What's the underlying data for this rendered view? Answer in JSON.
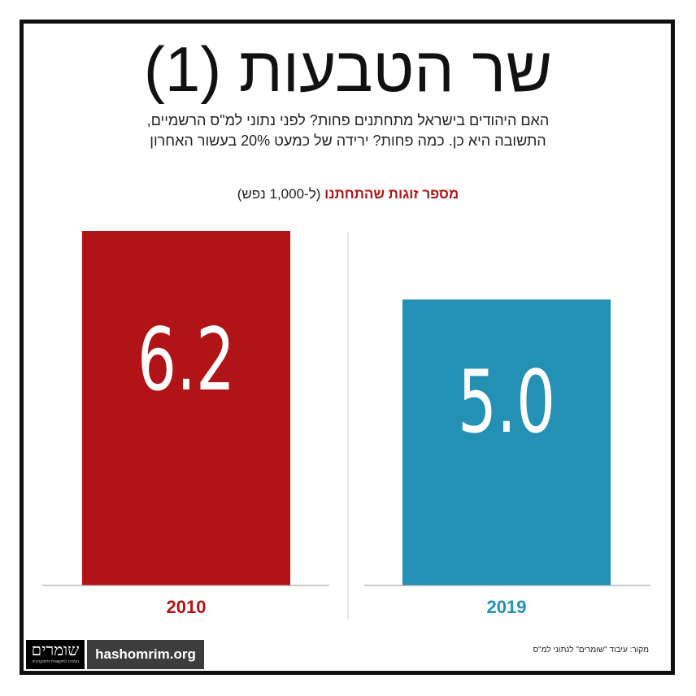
{
  "header": {
    "title": "שר הטבעות (1)",
    "subtitle_line1": "האם היהודים בישראל מתחתנים פחות? לפני נתוני למ\"ס הרשמיים,",
    "subtitle_line2": "התשובה היא כן. כמה פחות? ירידה של כמעט 20% בעשור האחרון"
  },
  "chart_label": {
    "main": "מספר זוגות שהתחתנו",
    "unit": "(ל-1,000 נפש)"
  },
  "chart_data": {
    "type": "bar",
    "title": "מספר זוגות שהתחתנו (ל-1,000 נפש)",
    "categories": [
      "2010",
      "2019"
    ],
    "values": [
      6.2,
      5.0
    ],
    "value_labels": [
      "6.2",
      "5.0"
    ],
    "colors": [
      "#b01416",
      "#2390b4"
    ],
    "ylim": [
      0,
      6.2
    ],
    "grid": false,
    "legend": "none"
  },
  "footer": {
    "logo_text": "שומרים",
    "logo_tagline": "המרכז לתקשורת ודמוקרטיה",
    "site": "hashomrim.org",
    "source": "מקור: עיבוד \"שומרים\" לנתוני למ\"ס"
  }
}
